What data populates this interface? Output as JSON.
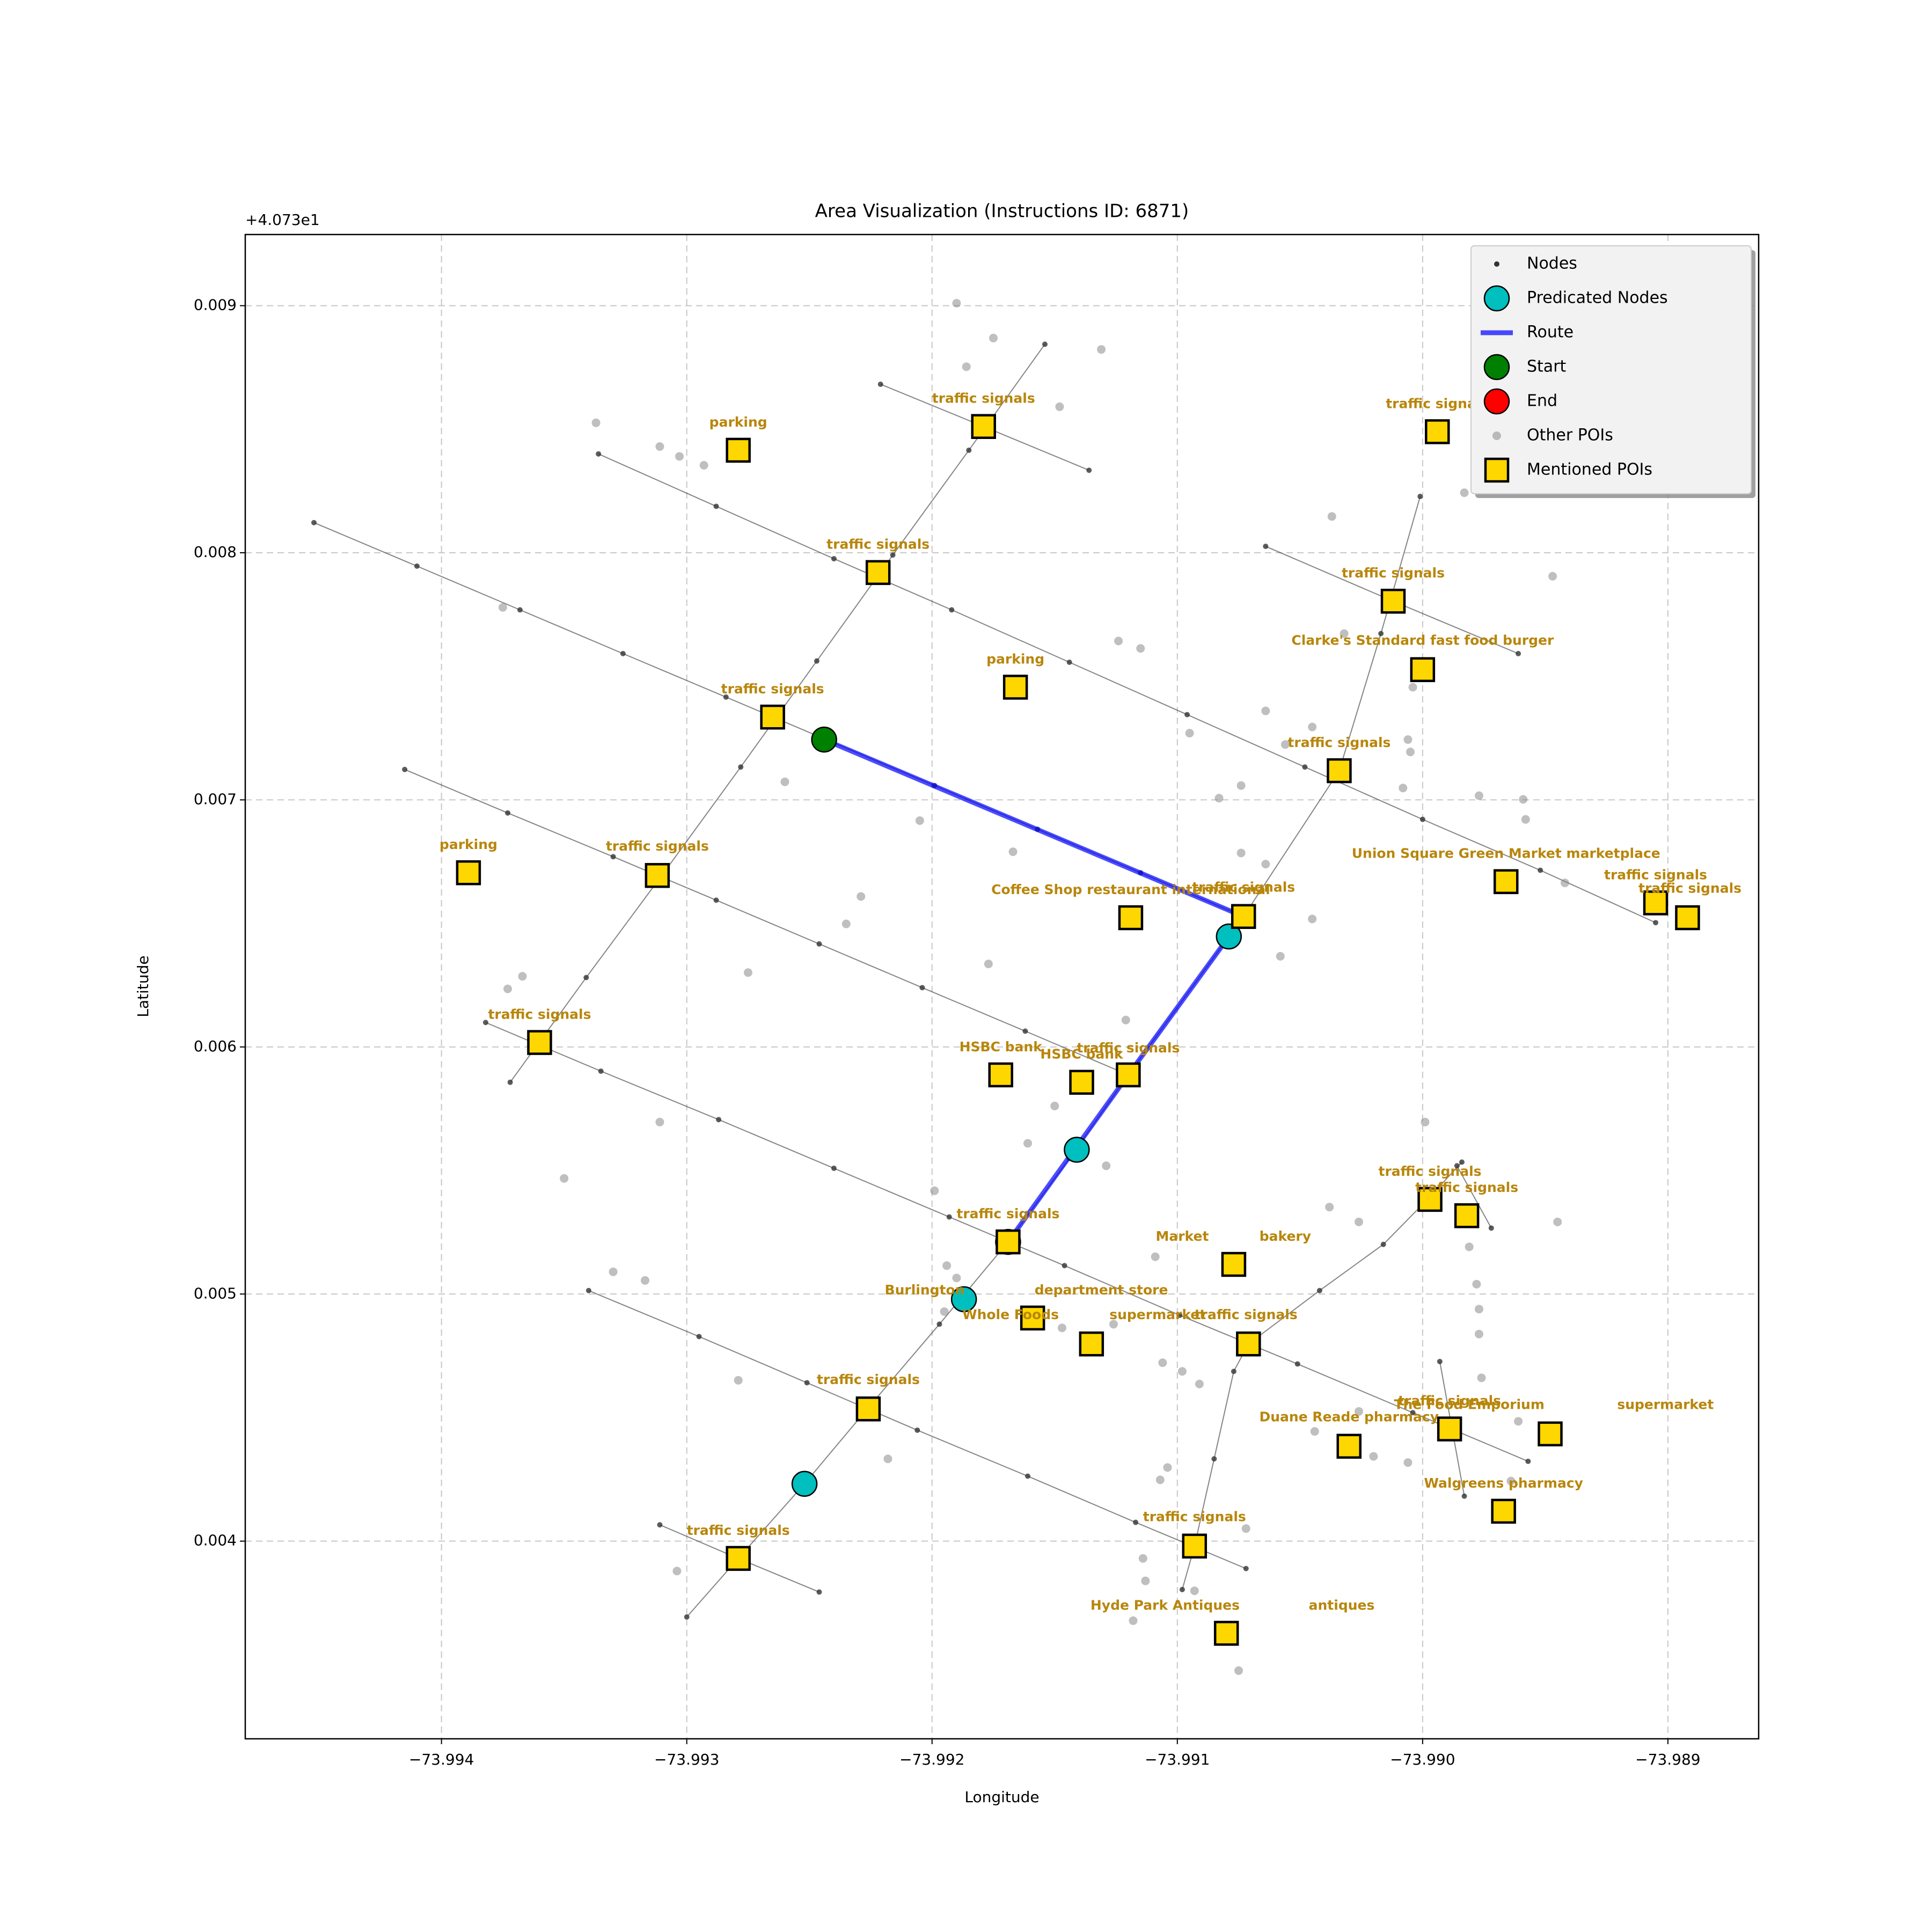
{
  "chart_data": {
    "type": "scatter",
    "title": "Area Visualization (Instructions ID: 6871)",
    "x_label": "Longitude",
    "y_label": "Latitude",
    "y_offset_label": "+4.073e1",
    "xlim": [
      -73.9948,
      -73.98863
    ],
    "ylim": [
      0.0032,
      0.009288
    ],
    "xticks": [
      {
        "value": -73.994,
        "label": "−73.994"
      },
      {
        "value": -73.993,
        "label": "−73.993"
      },
      {
        "value": -73.992,
        "label": "−73.992"
      },
      {
        "value": -73.991,
        "label": "−73.991"
      },
      {
        "value": -73.99,
        "label": "−73.990"
      },
      {
        "value": -73.989,
        "label": "−73.989"
      }
    ],
    "yticks": [
      0.004,
      0.005,
      0.006,
      0.007,
      0.008,
      0.009
    ],
    "grid": true,
    "legend": "upper right",
    "annotation_color": "#b8860b",
    "series": [
      {
        "name": "Nodes",
        "color": "#333333",
        "marker": "point",
        "x": [
          -73.99452,
          -73.9941,
          -73.99368,
          -73.99326,
          -73.99284,
          -73.99242,
          -73.99199,
          -73.99157,
          -73.99115,
          -73.99073,
          null,
          -73.99336,
          -73.99288,
          -73.9924,
          -73.99192,
          -73.99144,
          -73.99096,
          -73.99048,
          -73.99,
          -73.98952,
          -73.98905,
          null,
          -73.99415,
          -73.99373,
          -73.9933,
          -73.99288,
          -73.99246,
          -73.99204,
          -73.99162,
          -73.9912,
          null,
          -73.99382,
          -73.99335,
          -73.99287,
          -73.9924,
          -73.99193,
          -73.99146,
          -73.99099,
          -73.99051,
          -73.99004,
          -73.98957,
          null,
          -73.9934,
          -73.99295,
          -73.99251,
          -73.99206,
          -73.99161,
          -73.99117,
          -73.99072,
          null,
          -73.99311,
          -73.99279,
          -73.99246,
          null,
          -73.99221,
          -73.99179,
          -73.99136,
          null,
          -73.99064,
          -73.99012,
          -73.98961,
          null,
          -73.99154,
          -73.99185,
          -73.99216,
          -73.99247,
          -73.99278,
          -73.99309,
          -73.99341,
          -73.99372,
          null,
          -73.99001,
          -73.99017,
          -73.99034,
          -73.99073,
          -73.9912,
          -73.99144,
          -73.99169,
          -73.99197,
          -73.99226,
          -73.99252,
          -73.99279,
          -73.993,
          null,
          -73.99071,
          -73.99042,
          -73.99016,
          -73.98998,
          -73.98984,
          null,
          -73.99098,
          -73.99093,
          -73.99085,
          -73.99077,
          -73.99071,
          null,
          -73.98993,
          -73.98983,
          null,
          -73.98986,
          -73.98972
        ],
        "y": [
          0.008122,
          0.007946,
          0.007769,
          0.007592,
          0.007416,
          0.007239,
          0.007058,
          0.006881,
          0.006705,
          0.006528,
          null,
          0.0084,
          0.008188,
          0.007976,
          0.007769,
          0.007557,
          0.007345,
          0.007133,
          0.006921,
          0.006715,
          0.006503,
          null,
          0.007123,
          0.006947,
          0.00677,
          0.006594,
          0.006417,
          0.00624,
          0.006064,
          0.005887,
          null,
          0.006099,
          0.005902,
          0.005706,
          0.005509,
          0.005312,
          0.005115,
          0.004914,
          0.004717,
          0.00452,
          0.004323,
          null,
          0.005014,
          0.004828,
          0.004641,
          0.004449,
          0.004263,
          0.004076,
          0.003889,
          null,
          0.004066,
          0.00393,
          0.003794,
          null,
          0.008682,
          0.008511,
          0.008334,
          null,
          0.008026,
          0.007804,
          0.007592,
          null,
          0.008844,
          0.008415,
          0.007991,
          0.007562,
          0.007133,
          0.00671,
          0.006281,
          0.005857,
          null,
          0.008228,
          0.007673,
          0.007118,
          0.006528,
          0.005887,
          0.005549,
          0.005211,
          0.004878,
          0.00454,
          0.004232,
          0.00393,
          0.003693,
          null,
          0.004798,
          0.005014,
          0.005201,
          0.005383,
          0.005534,
          null,
          0.003804,
          0.00398,
          0.004333,
          0.004687,
          0.004798,
          null,
          0.004727,
          0.004182,
          null,
          0.005519,
          0.005267
        ]
      },
      {
        "name": "Predicated Nodes",
        "color": "#00bfbf",
        "marker": "circle",
        "x": [
          -73.99079,
          -73.99141,
          -73.99187,
          -73.99252
        ],
        "y": [
          0.006447,
          0.005584,
          0.004979,
          0.004232
        ]
      },
      {
        "name": "Route",
        "color": "#0000ff",
        "marker": "line",
        "x": [
          -73.99244,
          -73.99073,
          -73.9912,
          -73.99169
        ],
        "y": [
          0.007244,
          0.006528,
          0.005887,
          0.005211
        ]
      },
      {
        "name": "Start",
        "color": "#008000",
        "marker": "circle",
        "x": [
          -73.99244
        ],
        "y": [
          0.007244
        ]
      },
      {
        "name": "End",
        "color": "#ff0000",
        "marker": "circle",
        "x": [
          -73.99169
        ],
        "y": [
          0.005211
        ]
      },
      {
        "name": "Other POIs",
        "color": "#808080",
        "marker": "dot",
        "x": [
          -73.9919,
          -73.99175,
          -73.99186,
          -73.99131,
          -73.99337,
          -73.99311,
          -73.99303,
          -73.99293,
          -73.99148,
          -73.98983,
          -73.99037,
          -73.98947,
          -73.99375,
          -73.99124,
          -73.99115,
          -73.99032,
          -73.99004,
          -73.99006,
          -73.99005,
          -73.99045,
          -73.99056,
          -73.99064,
          -73.99095,
          -73.99008,
          -73.98977,
          -73.98959,
          -73.98958,
          -73.98942,
          -73.9926,
          -73.99205,
          -73.99167,
          -73.99083,
          -73.99074,
          -73.99074,
          -73.99064,
          -73.99229,
          -73.99235,
          -73.99045,
          -73.99058,
          -73.99373,
          -73.99367,
          -73.99275,
          -73.99177,
          -73.99121,
          -73.9915,
          -73.99311,
          -73.9935,
          -73.99129,
          -73.99161,
          -73.99199,
          -73.98999,
          -73.99038,
          -73.99026,
          -73.98945,
          -73.98981,
          -73.98978,
          -73.98977,
          -73.98977,
          -73.9933,
          -73.99317,
          -73.99194,
          -73.9919,
          -73.99195,
          -73.99109,
          -73.99147,
          -73.99126,
          -73.99279,
          -73.99218,
          -73.99091,
          -73.99098,
          -73.99106,
          -73.99026,
          -73.99044,
          -73.9902,
          -73.99006,
          -73.98976,
          -73.98961,
          -73.98964,
          -73.99104,
          -73.99107,
          -73.99114,
          -73.99113,
          -73.99093,
          -73.99118,
          -73.99075,
          -73.99304,
          -73.99072
        ],
        "y": [
          0.00901,
          0.008869,
          0.008753,
          0.008823,
          0.008526,
          0.00843,
          0.00839,
          0.008354,
          0.008591,
          0.008243,
          0.008147,
          0.007905,
          0.007779,
          0.007643,
          0.007613,
          0.007673,
          0.007456,
          0.007244,
          0.007194,
          0.007295,
          0.007224,
          0.00736,
          0.00727,
          0.007048,
          0.007017,
          0.007002,
          0.006921,
          0.006664,
          0.007073,
          0.006916,
          0.00679,
          0.007007,
          0.007058,
          0.006785,
          0.00674,
          0.006609,
          0.006498,
          0.006518,
          0.006367,
          0.006235,
          0.006286,
          0.006301,
          0.006336,
          0.006109,
          0.005761,
          0.005696,
          0.005468,
          0.005519,
          0.00561,
          0.005418,
          0.005696,
          0.005352,
          0.005292,
          0.005292,
          0.005191,
          0.00504,
          0.004939,
          0.004838,
          0.00509,
          0.005055,
          0.005115,
          0.005065,
          0.004929,
          0.005151,
          0.004863,
          0.004878,
          0.004651,
          0.004333,
          0.004636,
          0.004687,
          0.004722,
          0.004525,
          0.004444,
          0.004343,
          0.004318,
          0.004661,
          0.004485,
          0.004243,
          0.004298,
          0.004248,
          0.00393,
          0.003839,
          0.003799,
          0.003678,
          0.003476,
          0.003879,
          0.004051
        ]
      },
      {
        "name": "Mentioned POIs",
        "color": "#ffd700",
        "marker": "square",
        "x": [
          -73.99279,
          -73.99179,
          -73.98994,
          -73.99222,
          -73.99012,
          -73.99166,
          -73.99,
          -73.99265,
          -73.99034,
          -73.99389,
          -73.99312,
          -73.98966,
          -73.98905,
          -73.98892,
          -73.99119,
          -73.99073,
          -73.9936,
          -73.99172,
          -73.99139,
          -73.9912,
          -73.98997,
          -73.98982,
          -73.99169,
          -73.99077,
          -73.99159,
          -73.99135,
          -73.99071,
          -73.99226,
          -73.9903,
          -73.98989,
          -73.98948,
          -73.98967,
          -73.99093,
          -73.99279,
          -73.9908
        ],
        "y": [
          0.008415,
          0.008511,
          0.00849,
          0.00792,
          0.007804,
          0.007456,
          0.007527,
          0.007335,
          0.007118,
          0.006705,
          0.006694,
          0.006669,
          0.006583,
          0.006523,
          0.006523,
          0.006528,
          0.006018,
          0.005887,
          0.005857,
          0.005887,
          0.005383,
          0.005317,
          0.005211,
          0.00512,
          0.004903,
          0.004798,
          0.004798,
          0.004535,
          0.004384,
          0.004454,
          0.004434,
          0.004121,
          0.00398,
          0.00393,
          0.003627
        ]
      }
    ],
    "annotations": [
      {
        "text": "parking",
        "x": -73.99279,
        "y": 0.008526
      },
      {
        "text": "traffic signals",
        "x": -73.99179,
        "y": 0.008622
      },
      {
        "text": "traffic signals",
        "x": -73.98994,
        "y": 0.008601
      },
      {
        "text": "traffic signals",
        "x": -73.99222,
        "y": 0.008031
      },
      {
        "text": "traffic signals",
        "x": -73.99012,
        "y": 0.007915
      },
      {
        "text": "parking",
        "x": -73.99166,
        "y": 0.007567
      },
      {
        "text": "Clarke's Standard fast food burger",
        "x": -73.99,
        "y": 0.007643
      },
      {
        "text": "traffic signals",
        "x": -73.99265,
        "y": 0.007446
      },
      {
        "text": "traffic signals",
        "x": -73.99034,
        "y": 0.007229
      },
      {
        "text": "parking",
        "x": -73.99389,
        "y": 0.006816
      },
      {
        "text": "traffic signals",
        "x": -73.99312,
        "y": 0.00681
      },
      {
        "text": "Union Square Green Market marketplace",
        "x": -73.98966,
        "y": 0.00678
      },
      {
        "text": "traffic signals",
        "x": -73.98905,
        "y": 0.006694
      },
      {
        "text": "traffic signals",
        "x": -73.98891,
        "y": 0.006639
      },
      {
        "text": "Coffee Shop restaurant international",
        "x": -73.99119,
        "y": 0.006634
      },
      {
        "text": "traffic signals",
        "x": -73.99073,
        "y": 0.006644
      },
      {
        "text": "traffic signals",
        "x": -73.9936,
        "y": 0.006129
      },
      {
        "text": "HSBC bank",
        "x": -73.99172,
        "y": 0.005998
      },
      {
        "text": "HSBC bank",
        "x": -73.99139,
        "y": 0.005968
      },
      {
        "text": "traffic signals",
        "x": -73.9912,
        "y": 0.005993
      },
      {
        "text": "traffic signals",
        "x": -73.98997,
        "y": 0.005494
      },
      {
        "text": "traffic signals",
        "x": -73.98982,
        "y": 0.005428
      },
      {
        "text": "traffic signals",
        "x": -73.99169,
        "y": 0.005322
      },
      {
        "text": "Market",
        "x": -73.99098,
        "y": 0.005231
      },
      {
        "text": "bakery",
        "x": -73.99056,
        "y": 0.005231
      },
      {
        "text": "Burlington",
        "x": -73.99203,
        "y": 0.005014
      },
      {
        "text": "department store",
        "x": -73.99131,
        "y": 0.005014
      },
      {
        "text": "Whole Foods",
        "x": -73.99168,
        "y": 0.004914
      },
      {
        "text": "supermarket",
        "x": -73.99108,
        "y": 0.004914
      },
      {
        "text": "traffic signals",
        "x": -73.99072,
        "y": 0.004914
      },
      {
        "text": "traffic signals",
        "x": -73.99226,
        "y": 0.004651
      },
      {
        "text": "Duane Reade pharmacy",
        "x": -73.9903,
        "y": 0.0045
      },
      {
        "text": "traffic signals",
        "x": -73.98989,
        "y": 0.004565
      },
      {
        "text": "The Food Emporium",
        "x": -73.98981,
        "y": 0.00455
      },
      {
        "text": "supermarket",
        "x": -73.98901,
        "y": 0.00455
      },
      {
        "text": "Walgreens pharmacy",
        "x": -73.98967,
        "y": 0.004232
      },
      {
        "text": "traffic signals",
        "x": -73.99093,
        "y": 0.004096
      },
      {
        "text": "traffic signals",
        "x": -73.99279,
        "y": 0.004041
      },
      {
        "text": "Hyde Park Antiques",
        "x": -73.99105,
        "y": 0.003738
      },
      {
        "text": "antiques",
        "x": -73.99033,
        "y": 0.003738
      }
    ]
  }
}
